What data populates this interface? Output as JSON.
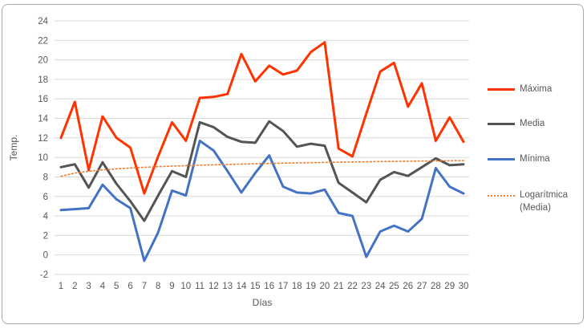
{
  "frame": {
    "border_color": "#A9A9A9",
    "background": "#FFFFFF"
  },
  "chart_data": {
    "type": "line",
    "title": "",
    "xlabel": "Días",
    "ylabel": "Temp.",
    "ylim": [
      -2,
      24
    ],
    "ytick_step": 2,
    "grid": true,
    "legend_position": "right",
    "gridline_color": "#D9D9D9",
    "tick_label_color": "#595959",
    "x": [
      1,
      2,
      3,
      4,
      5,
      6,
      7,
      8,
      9,
      10,
      11,
      12,
      13,
      14,
      15,
      16,
      17,
      18,
      19,
      20,
      21,
      22,
      23,
      24,
      25,
      26,
      27,
      28,
      29,
      30
    ],
    "x_tick_labels": [
      "1",
      "2",
      "3",
      "4",
      "5",
      "6",
      "7",
      "8",
      "9",
      "10",
      "11",
      "12",
      "13",
      "14",
      "15",
      "16",
      "17",
      "18",
      "19",
      "20",
      "21",
      "22",
      "23",
      "24",
      "25",
      "26",
      "27",
      "28",
      "29",
      "30"
    ],
    "y_tick_labels": [
      "-2",
      "0",
      "2",
      "4",
      "6",
      "8",
      "10",
      "12",
      "14",
      "16",
      "18",
      "20",
      "22",
      "24"
    ],
    "series": [
      {
        "name": "Máxima",
        "color": "#FF3300",
        "style": "solid",
        "values": [
          12.0,
          15.7,
          8.7,
          14.2,
          12.0,
          11.0,
          6.3,
          10.1,
          13.6,
          11.7,
          16.1,
          16.2,
          16.5,
          20.6,
          17.8,
          19.4,
          18.5,
          18.9,
          20.8,
          21.8,
          10.9,
          10.1,
          14.5,
          18.8,
          19.7,
          15.2,
          17.6,
          11.7,
          14.1,
          11.6
        ]
      },
      {
        "name": "Media",
        "color": "#545454",
        "style": "solid",
        "values": [
          9.0,
          9.3,
          6.9,
          9.5,
          7.3,
          5.5,
          3.5,
          6.1,
          8.6,
          8.0,
          13.6,
          13.1,
          12.1,
          11.6,
          11.5,
          13.7,
          12.7,
          11.1,
          11.4,
          11.2,
          7.4,
          6.4,
          5.4,
          7.7,
          8.5,
          8.1,
          9.0,
          9.9,
          9.2,
          9.3
        ]
      },
      {
        "name": "Mínima",
        "color": "#4472C4",
        "style": "solid",
        "values": [
          4.6,
          4.7,
          4.8,
          7.2,
          5.7,
          4.8,
          -0.6,
          2.3,
          6.6,
          6.1,
          11.7,
          10.7,
          8.6,
          6.4,
          8.4,
          10.2,
          7.0,
          6.4,
          6.3,
          6.7,
          4.3,
          4.0,
          -0.2,
          2.4,
          3.0,
          2.4,
          3.7,
          8.9,
          7.0,
          6.3
        ]
      },
      {
        "name": "Logarítmica (Media)",
        "color": "#ED7D31",
        "style": "dotted",
        "trend": {
          "type": "logarithmic",
          "a": 8.06,
          "b": 0.476,
          "formula": "y = 8.06 + 0.476·ln(x)"
        }
      }
    ]
  },
  "legend": {
    "items": [
      "Máxima",
      "Media",
      "Mínima",
      "Logarítmica (Media)"
    ]
  }
}
